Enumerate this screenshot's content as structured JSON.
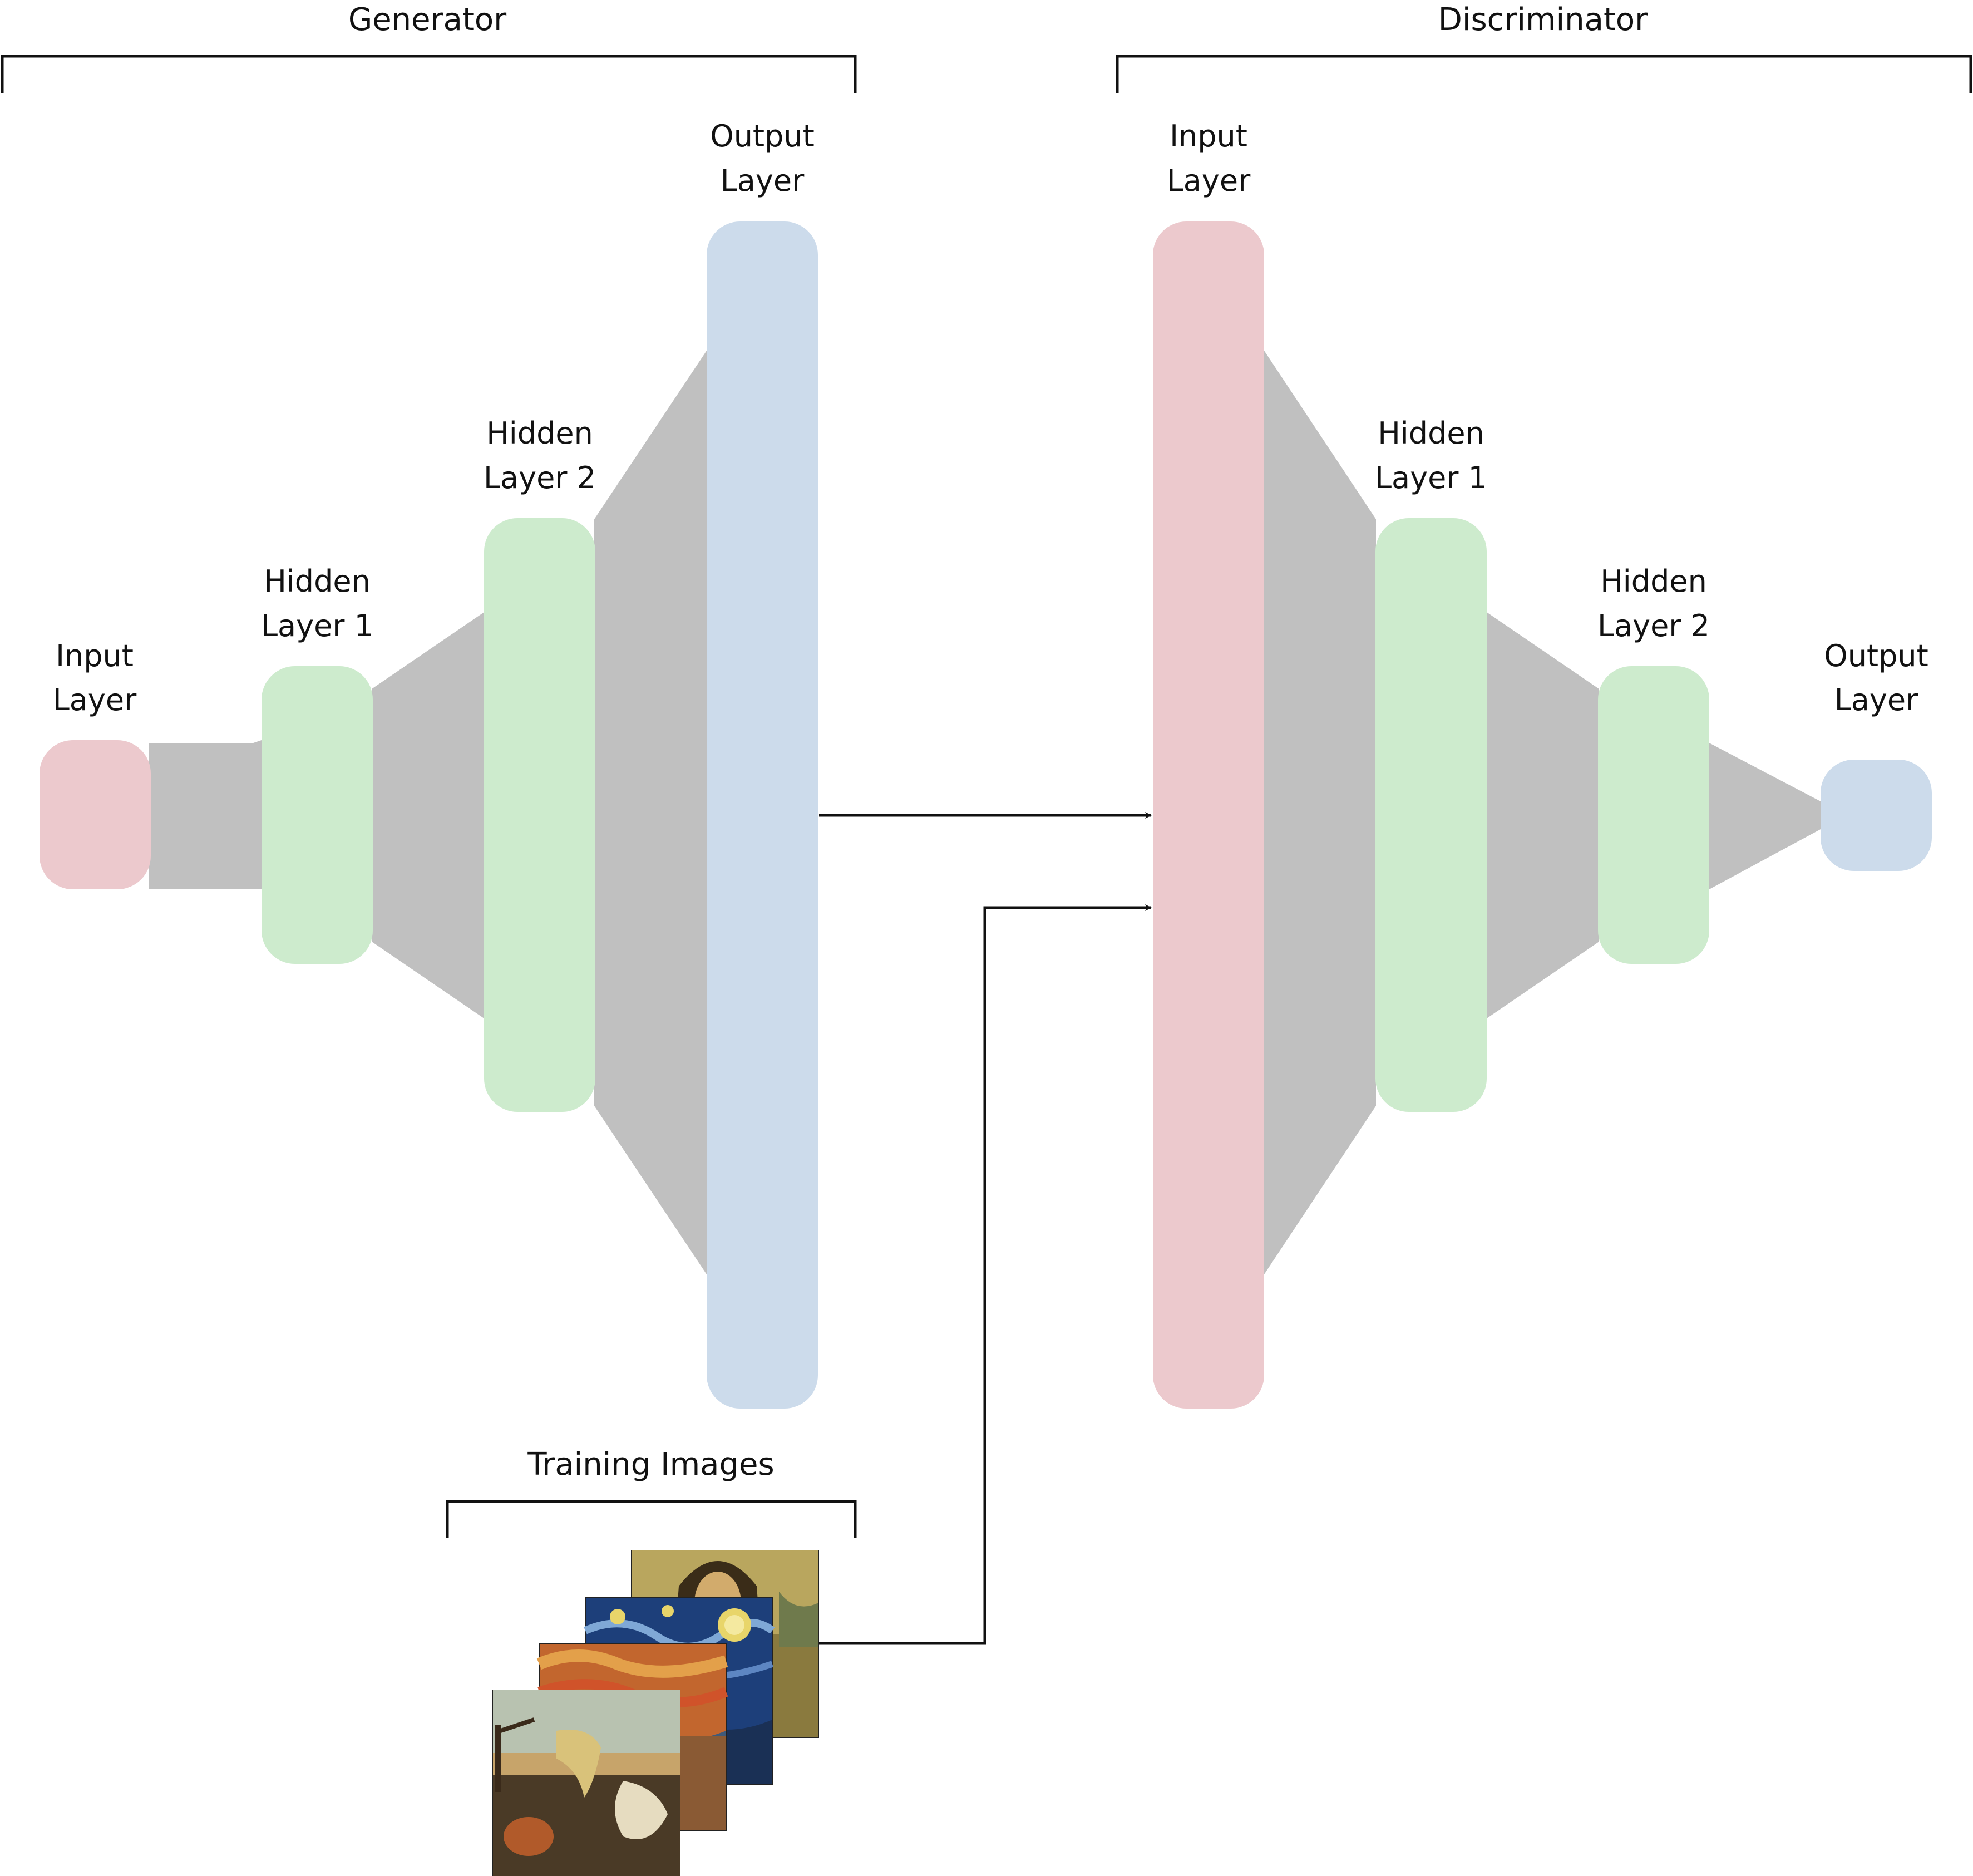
{
  "generator": {
    "title": "Generator",
    "layers": [
      {
        "name": "input",
        "line1": "Input",
        "line2": "Layer",
        "color": "#ecc9cd"
      },
      {
        "name": "hidden-1",
        "line1": "Hidden",
        "line2": "Layer 1",
        "color": "#cdebcd"
      },
      {
        "name": "hidden-2",
        "line1": "Hidden",
        "line2": "Layer 2",
        "color": "#cdebcd"
      },
      {
        "name": "output",
        "line1": "Output",
        "line2": "Layer",
        "color": "#ccdbeb"
      }
    ]
  },
  "discriminator": {
    "title": "Discriminator",
    "layers": [
      {
        "name": "input",
        "line1": "Input",
        "line2": "Layer",
        "color": "#ecc9cd"
      },
      {
        "name": "hidden-1",
        "line1": "Hidden",
        "line2": "Layer 1",
        "color": "#cdebcd"
      },
      {
        "name": "hidden-2",
        "line1": "Hidden",
        "line2": "Layer 2",
        "color": "#cdebcd"
      },
      {
        "name": "output",
        "line1": "Output",
        "line2": "Layer",
        "color": "#ccdbeb"
      }
    ]
  },
  "training": {
    "title": "Training Images"
  },
  "colors": {
    "connector": "#c0c0c0",
    "stroke": "#111111"
  },
  "icons": [
    "melting-clocks-painting-icon",
    "scream-painting-icon",
    "starry-night-painting-icon",
    "mona-lisa-painting-icon"
  ]
}
